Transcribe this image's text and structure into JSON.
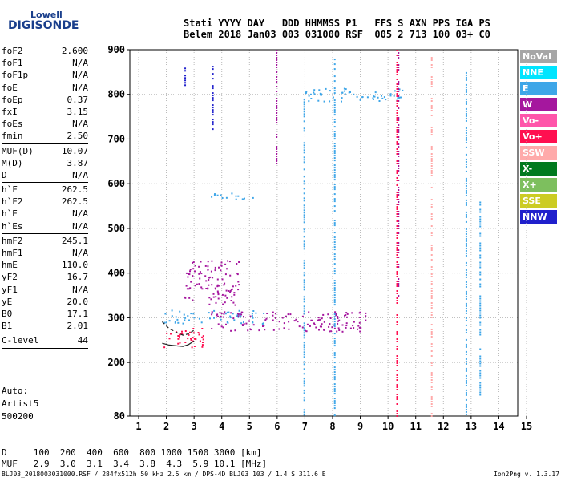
{
  "logo": {
    "top": "Lowell",
    "main": "DIGISONDE"
  },
  "header": {
    "line1": "Stati YYYY DAY   DDD HHMMSS P1   FFS S AXN PPS IGA PS",
    "line2": "Belem 2018 Jan03 003 031000 RSF  005 2 713 100 03+ C0"
  },
  "params": [
    {
      "label": "foF2",
      "value": "2.600"
    },
    {
      "label": "foF1",
      "value": "N/A"
    },
    {
      "label": "foF1p",
      "value": "N/A"
    },
    {
      "label": "foE",
      "value": "N/A"
    },
    {
      "label": "foEp",
      "value": "0.37"
    },
    {
      "label": "fxI",
      "value": "3.15"
    },
    {
      "label": "foEs",
      "value": "N/A"
    },
    {
      "label": "fmin",
      "value": "2.50"
    },
    {
      "sep": true
    },
    {
      "label": "MUF(D)",
      "value": "10.07"
    },
    {
      "label": "M(D)",
      "value": "3.87"
    },
    {
      "label": "D",
      "value": "N/A"
    },
    {
      "sep": true
    },
    {
      "label": "h`F",
      "value": "262.5"
    },
    {
      "label": "h`F2",
      "value": "262.5"
    },
    {
      "label": "h`E",
      "value": "N/A"
    },
    {
      "label": "h`Es",
      "value": "N/A"
    },
    {
      "sep": true
    },
    {
      "label": "hmF2",
      "value": "245.1"
    },
    {
      "label": "hmF1",
      "value": "N/A"
    },
    {
      "label": "hmE",
      "value": "110.0"
    },
    {
      "label": "yF2",
      "value": "16.7"
    },
    {
      "label": "yF1",
      "value": "N/A"
    },
    {
      "label": "yE",
      "value": "20.0"
    },
    {
      "label": "B0",
      "value": "17.1"
    },
    {
      "label": "B1",
      "value": "2.01"
    },
    {
      "sep": true
    },
    {
      "label": "C-level",
      "value": "44"
    },
    {
      "sep": true
    }
  ],
  "auto": {
    "line1": "Auto:",
    "line2": "Artist5",
    "line3": "500200"
  },
  "muf_table": {
    "d_label": "D",
    "d_values": [
      "100",
      "200",
      "400",
      "600",
      "800",
      "1000",
      "1500",
      "3000"
    ],
    "d_unit": "[km]",
    "m_label": "MUF",
    "m_values": [
      "2.9",
      "3.0",
      "3.1",
      "3.4",
      "3.8",
      "4.3",
      "5.9",
      "10.1"
    ],
    "m_unit": "[MHz]"
  },
  "footer": {
    "left": "BLJ03_2018003031000.RSF / 284fx512h 50 kHz 2.5 km / DPS-4D BLJ03 103 / 1.4 S 311.6 E",
    "right": "Ion2Png v. 1.3.17"
  },
  "legend": [
    {
      "label": "NoVal",
      "color": "#a6a6a6"
    },
    {
      "label": "NNE",
      "color": "#00e5ff"
    },
    {
      "label": "E",
      "color": "#3ea6e8"
    },
    {
      "label": "W",
      "color": "#a5179e"
    },
    {
      "label": "Vo-",
      "color": "#ff55aa"
    },
    {
      "label": "Vo+",
      "color": "#ff1050"
    },
    {
      "label": "SSW",
      "color": "#ffaaaa"
    },
    {
      "label": "X-",
      "color": "#007a1e"
    },
    {
      "label": "X+",
      "color": "#7dbf5e"
    },
    {
      "label": "SSE",
      "color": "#cccc22"
    },
    {
      "label": "NNW",
      "color": "#2020cc"
    }
  ],
  "chart_data": {
    "type": "scatter",
    "xlim": [
      1,
      15
    ],
    "ylim": [
      80,
      900
    ],
    "x_ticks": [
      1,
      2,
      3,
      4,
      5,
      6,
      7,
      8,
      9,
      10,
      11,
      12,
      13,
      14,
      15
    ],
    "y_ticks": [
      80,
      200,
      300,
      400,
      500,
      600,
      700,
      800,
      900
    ],
    "grid": true,
    "legend_position": "right",
    "traces": [
      {
        "name": "o-trace",
        "points": [
          [
            1.85,
            243
          ],
          [
            2.1,
            239
          ],
          [
            2.4,
            237
          ],
          [
            2.6,
            236
          ],
          [
            2.8,
            240
          ],
          [
            3.0,
            248
          ]
        ]
      },
      {
        "name": "x-trace",
        "points": [
          [
            1.85,
            291
          ],
          [
            2.1,
            276
          ],
          [
            2.4,
            266
          ],
          [
            2.6,
            261
          ],
          [
            2.8,
            264
          ],
          [
            3.0,
            272
          ]
        ]
      }
    ],
    "echo_regions": [
      {
        "mode": "Vo+",
        "x": [
          1.9,
          3.4
        ],
        "y": [
          232,
          280
        ]
      },
      {
        "mode": "E",
        "x": [
          1.9,
          5.5
        ],
        "y": [
          288,
          318
        ]
      },
      {
        "mode": "W",
        "x": [
          3.6,
          9.2
        ],
        "y": [
          270,
          315
        ]
      },
      {
        "mode": "W",
        "x": [
          2.6,
          4.6
        ],
        "y": [
          330,
          430
        ]
      },
      {
        "mode": "E",
        "x": [
          3.5,
          5.3
        ],
        "y": [
          565,
          580
        ]
      },
      {
        "mode": "E",
        "x": [
          7.0,
          10.6
        ],
        "y": [
          785,
          815
        ]
      }
    ],
    "vertical_lines": [
      {
        "mode": "W",
        "x": 5.95,
        "y": [
          640,
          900
        ]
      },
      {
        "mode": "E",
        "x": 6.95,
        "y": [
          80,
          790
        ]
      },
      {
        "mode": "E",
        "x": 8.05,
        "y": [
          80,
          880
        ]
      },
      {
        "mode": "Vo+",
        "x": 10.3,
        "y": [
          80,
          900
        ]
      },
      {
        "mode": "W",
        "x": 10.35,
        "y": [
          350,
          900
        ]
      },
      {
        "mode": "SSW",
        "x": 11.55,
        "y": [
          80,
          900
        ]
      },
      {
        "mode": "E",
        "x": 12.8,
        "y": [
          80,
          850
        ]
      },
      {
        "mode": "E",
        "x": 13.3,
        "y": [
          120,
          560
        ]
      },
      {
        "mode": "NNW",
        "x": 3.65,
        "y": [
          720,
          880
        ]
      },
      {
        "mode": "NNW",
        "x": 2.65,
        "y": [
          820,
          860
        ]
      }
    ]
  }
}
